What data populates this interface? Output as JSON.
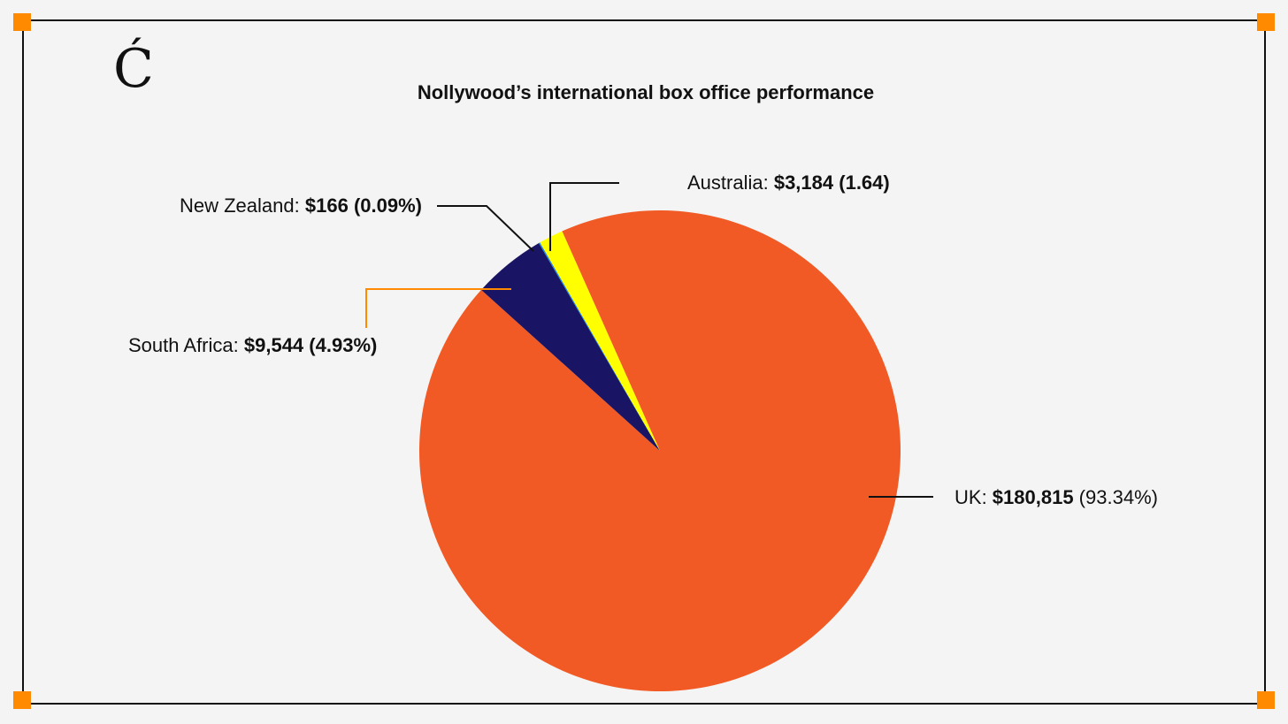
{
  "logo": {
    "glyph": "Ć"
  },
  "colors": {
    "background": "#f4f4f4",
    "frame": "#111111",
    "corner": "#ff8a00"
  },
  "chart_data": {
    "type": "pie",
    "title": "Nollywood’s international box office performance",
    "slices": [
      {
        "name": "UK",
        "value": 180815,
        "percent_label": "93.34%",
        "value_label": "$180,815",
        "color": "#f15a24"
      },
      {
        "name": "South Africa",
        "value": 9544,
        "percent_label": "4.93%",
        "value_label": "$9,544",
        "color": "#1a1464"
      },
      {
        "name": "New Zealand",
        "value": 166,
        "percent_label": "0.09%",
        "value_label": "$166",
        "color": "#1e88e5"
      },
      {
        "name": "Australia",
        "value": 3184,
        "percent_label": "1.64",
        "value_label": "$3,184",
        "color": "#ffff00"
      }
    ]
  }
}
